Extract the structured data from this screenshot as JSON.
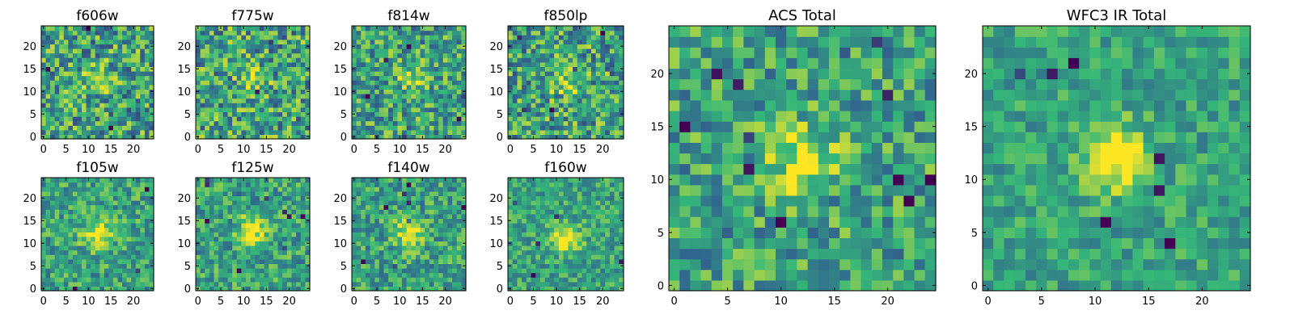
{
  "colormap": [
    "#440154",
    "#31688e",
    "#35b779",
    "#fde725"
  ],
  "chart_data": [
    {
      "type": "heatmap",
      "title": "f606w",
      "grid_size": 25,
      "xticks": [
        "0",
        "5",
        "10",
        "15",
        "20"
      ],
      "yticks": [
        "0",
        "5",
        "10",
        "15",
        "20"
      ],
      "xlim": [
        -0.5,
        24.5
      ],
      "ylim": [
        -0.5,
        24.5
      ],
      "source_peak": [
        12,
        13
      ],
      "source_strength": 0.25,
      "noise": 0.55
    },
    {
      "type": "heatmap",
      "title": "f775w",
      "grid_size": 25,
      "xticks": [
        "0",
        "5",
        "10",
        "15",
        "20"
      ],
      "yticks": [
        "0",
        "5",
        "10",
        "15",
        "20"
      ],
      "xlim": [
        -0.5,
        24.5
      ],
      "ylim": [
        -0.5,
        24.5
      ],
      "source_peak": [
        12,
        12
      ],
      "source_strength": 0.3,
      "noise": 0.55
    },
    {
      "type": "heatmap",
      "title": "f814w",
      "grid_size": 25,
      "xticks": [
        "0",
        "5",
        "10",
        "15",
        "20"
      ],
      "yticks": [
        "0",
        "5",
        "10",
        "15",
        "20"
      ],
      "xlim": [
        -0.5,
        24.5
      ],
      "ylim": [
        -0.5,
        24.5
      ],
      "source_peak": [
        13,
        13
      ],
      "source_strength": 0.4,
      "noise": 0.5
    },
    {
      "type": "heatmap",
      "title": "f850lp",
      "grid_size": 25,
      "xticks": [
        "0",
        "5",
        "10",
        "15",
        "20"
      ],
      "yticks": [
        "0",
        "5",
        "10",
        "15",
        "20"
      ],
      "xlim": [
        -0.5,
        24.5
      ],
      "ylim": [
        -0.5,
        24.5
      ],
      "source_peak": [
        12,
        12
      ],
      "source_strength": 0.3,
      "noise": 0.55
    },
    {
      "type": "heatmap",
      "title": "f105w",
      "grid_size": 25,
      "xticks": [
        "0",
        "5",
        "10",
        "15",
        "20"
      ],
      "yticks": [
        "0",
        "5",
        "10",
        "15",
        "20"
      ],
      "xlim": [
        -0.5,
        24.5
      ],
      "ylim": [
        -0.5,
        24.5
      ],
      "source_peak": [
        12,
        12
      ],
      "source_strength": 0.5,
      "noise": 0.4
    },
    {
      "type": "heatmap",
      "title": "f125w",
      "grid_size": 25,
      "xticks": [
        "0",
        "5",
        "10",
        "15",
        "20"
      ],
      "yticks": [
        "0",
        "5",
        "10",
        "15",
        "20"
      ],
      "xlim": [
        -0.5,
        24.5
      ],
      "ylim": [
        -0.5,
        24.5
      ],
      "source_peak": [
        12,
        13
      ],
      "source_strength": 0.5,
      "noise": 0.4
    },
    {
      "type": "heatmap",
      "title": "f140w",
      "grid_size": 25,
      "xticks": [
        "0",
        "5",
        "10",
        "15",
        "20"
      ],
      "yticks": [
        "0",
        "5",
        "10",
        "15",
        "20"
      ],
      "xlim": [
        -0.5,
        24.5
      ],
      "ylim": [
        -0.5,
        24.5
      ],
      "source_peak": [
        12,
        12
      ],
      "source_strength": 0.5,
      "noise": 0.4
    },
    {
      "type": "heatmap",
      "title": "f160w",
      "grid_size": 25,
      "xticks": [
        "0",
        "5",
        "10",
        "15",
        "20"
      ],
      "yticks": [
        "0",
        "5",
        "10",
        "15",
        "20"
      ],
      "xlim": [
        -0.5,
        24.5
      ],
      "ylim": [
        -0.5,
        24.5
      ],
      "source_peak": [
        12,
        11
      ],
      "source_strength": 0.55,
      "noise": 0.35
    },
    {
      "type": "heatmap",
      "title": "ACS Total",
      "grid_size": 25,
      "xticks": [
        "0",
        "5",
        "10",
        "15",
        "20"
      ],
      "yticks": [
        "0",
        "5",
        "10",
        "15",
        "20"
      ],
      "xlim": [
        -0.5,
        24.5
      ],
      "ylim": [
        -0.5,
        24.5
      ],
      "source_peak": [
        12,
        12
      ],
      "source_strength": 0.5,
      "noise": 0.45
    },
    {
      "type": "heatmap",
      "title": "WFC3 IR Total",
      "grid_size": 25,
      "xticks": [
        "0",
        "5",
        "10",
        "15",
        "20"
      ],
      "yticks": [
        "0",
        "5",
        "10",
        "15",
        "20"
      ],
      "xlim": [
        -0.5,
        24.5
      ],
      "ylim": [
        -0.5,
        24.5
      ],
      "source_peak": [
        12,
        12
      ],
      "source_strength": 0.6,
      "noise": 0.3
    }
  ]
}
